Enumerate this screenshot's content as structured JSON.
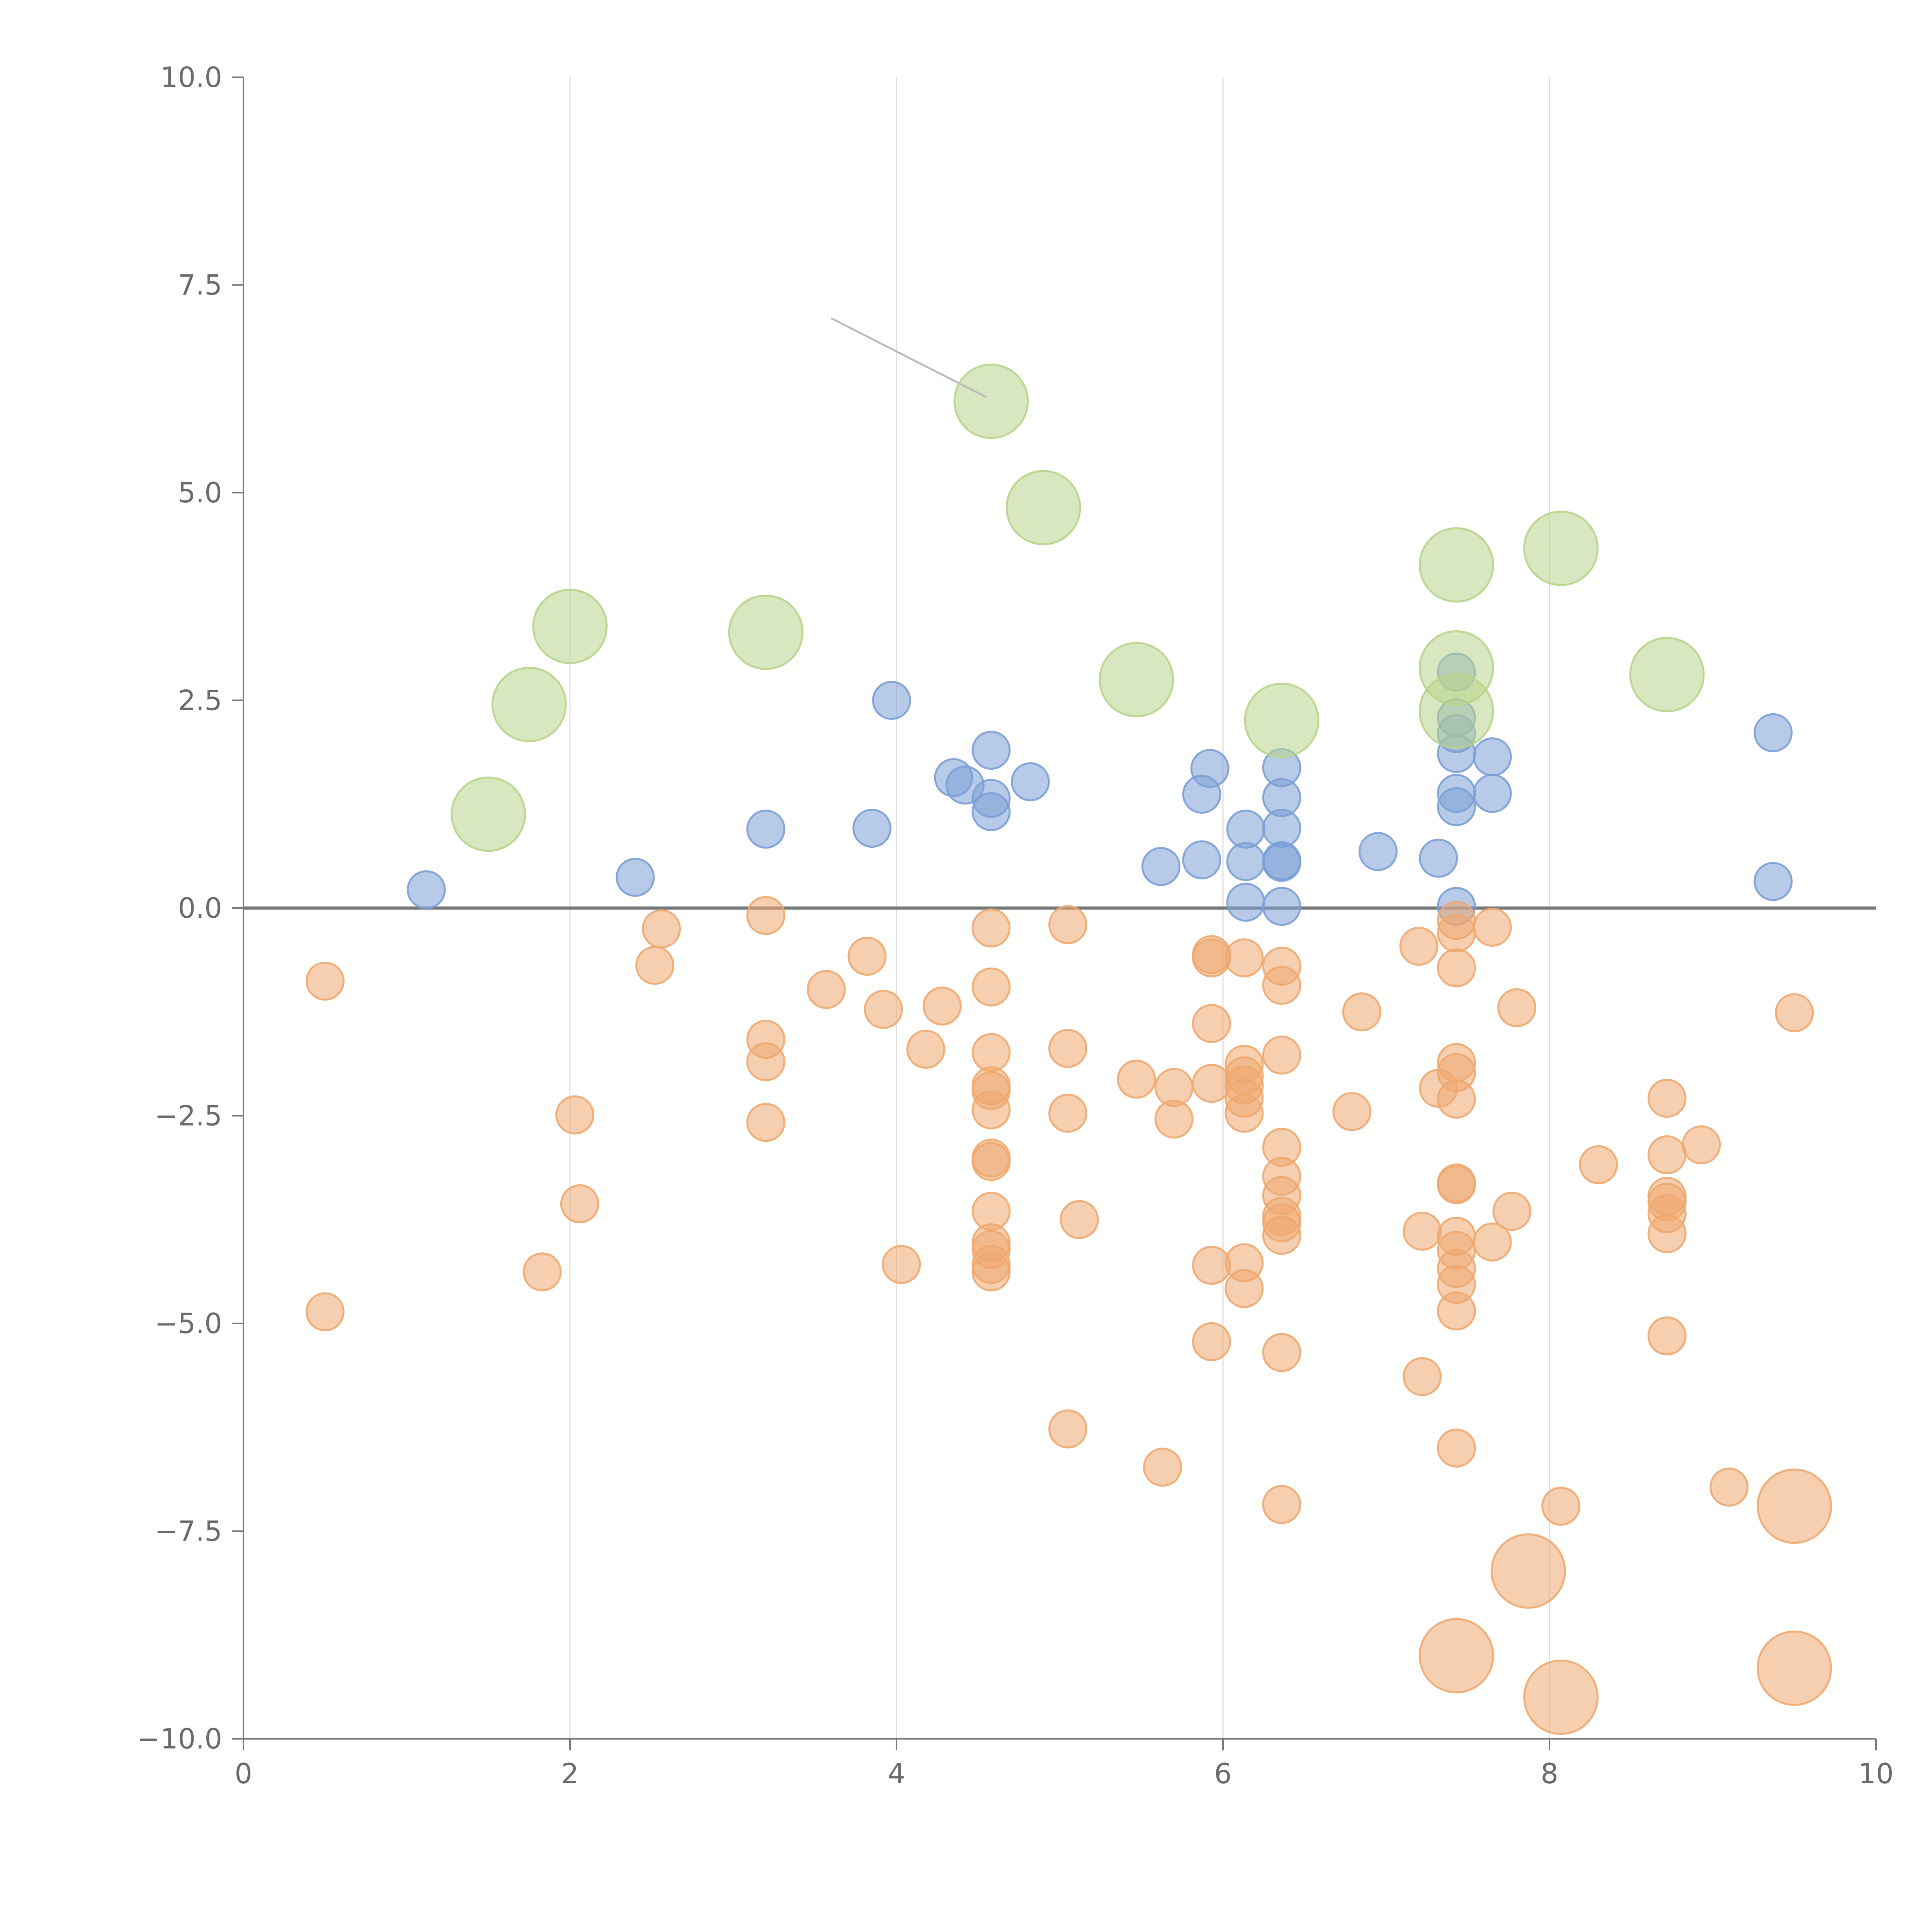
{
  "chart_data": {
    "type": "scatter",
    "title": "",
    "xlabel": "",
    "ylabel": "",
    "xlim": [
      0,
      10
    ],
    "ylim": [
      -10,
      10
    ],
    "x_ticks": [
      0,
      2,
      4,
      6,
      8,
      10
    ],
    "x_tick_labels": [
      "0",
      "2",
      "4",
      "6",
      "8",
      "10"
    ],
    "y_ticks": [
      -10,
      -7.5,
      -5,
      -2.5,
      0,
      2.5,
      5,
      7.5,
      10
    ],
    "y_tick_labels": [
      "−10.0",
      "−7.5",
      "−5.0",
      "−2.5",
      "0.0",
      "2.5",
      "5.0",
      "7.5",
      "10.0"
    ],
    "vertical_gridlines": [
      2,
      4,
      6,
      8
    ],
    "reference_line_y": 0,
    "colors": {
      "positive": "#7b9fd6",
      "negative": "#eea86f",
      "highlight": "#b8d48a",
      "axis": "#7a7a7a",
      "grid": "#dddddd"
    },
    "series": [
      {
        "name": "positive",
        "color_key": "positive",
        "size": "small",
        "points": [
          [
            1.12,
            0.22
          ],
          [
            2.4,
            0.37
          ],
          [
            3.2,
            0.95
          ],
          [
            3.85,
            0.96
          ],
          [
            3.97,
            2.5
          ],
          [
            4.35,
            1.57
          ],
          [
            4.42,
            1.48
          ],
          [
            4.58,
            1.9
          ],
          [
            4.58,
            1.32
          ],
          [
            4.58,
            1.16
          ],
          [
            4.82,
            1.52
          ],
          [
            5.62,
            0.5
          ],
          [
            5.87,
            0.58
          ],
          [
            5.87,
            1.37
          ],
          [
            5.92,
            1.68
          ],
          [
            6.14,
            0.95
          ],
          [
            6.14,
            0.56
          ],
          [
            6.14,
            0.07
          ],
          [
            6.36,
            1.69
          ],
          [
            6.36,
            1.33
          ],
          [
            6.36,
            0.96
          ],
          [
            6.36,
            0.57
          ],
          [
            6.36,
            0.55
          ],
          [
            6.36,
            0.02
          ],
          [
            6.95,
            0.68
          ],
          [
            7.32,
            0.6
          ],
          [
            7.43,
            2.84
          ],
          [
            7.43,
            2.29
          ],
          [
            7.43,
            2.1
          ],
          [
            7.43,
            1.86
          ],
          [
            7.43,
            1.38
          ],
          [
            7.43,
            1.22
          ],
          [
            7.43,
            0.02
          ],
          [
            7.65,
            1.82
          ],
          [
            7.65,
            1.38
          ],
          [
            9.37,
            2.11
          ],
          [
            9.37,
            0.32
          ]
        ]
      },
      {
        "name": "negative",
        "color_key": "negative",
        "size": "small",
        "points": [
          [
            0.5,
            -0.88
          ],
          [
            0.5,
            -4.86
          ],
          [
            1.83,
            -4.38
          ],
          [
            2.03,
            -2.49
          ],
          [
            2.06,
            -3.56
          ],
          [
            2.52,
            -0.69
          ],
          [
            2.56,
            -0.25
          ],
          [
            3.2,
            -0.09
          ],
          [
            3.2,
            -1.58
          ],
          [
            3.2,
            -1.85
          ],
          [
            3.2,
            -2.58
          ],
          [
            3.57,
            -0.98
          ],
          [
            3.82,
            -0.58
          ],
          [
            3.92,
            -1.22
          ],
          [
            4.03,
            -4.29
          ],
          [
            4.18,
            -1.7
          ],
          [
            4.28,
            -1.18
          ],
          [
            4.58,
            -0.24
          ],
          [
            4.58,
            -0.95
          ],
          [
            4.58,
            -1.74
          ],
          [
            4.58,
            -2.14
          ],
          [
            4.58,
            -2.2
          ],
          [
            4.58,
            -2.43
          ],
          [
            4.58,
            -3.01
          ],
          [
            4.58,
            -3.05
          ],
          [
            4.58,
            -3.65
          ],
          [
            4.58,
            -4.03
          ],
          [
            4.58,
            -4.11
          ],
          [
            4.58,
            -4.29
          ],
          [
            4.58,
            -4.38
          ],
          [
            5.05,
            -0.2
          ],
          [
            5.05,
            -1.69
          ],
          [
            5.05,
            -2.47
          ],
          [
            5.05,
            -6.27
          ],
          [
            5.12,
            -3.75
          ],
          [
            5.47,
            -2.06
          ],
          [
            5.63,
            -6.73
          ],
          [
            5.7,
            -2.16
          ],
          [
            5.7,
            -2.54
          ],
          [
            5.93,
            -0.56
          ],
          [
            5.93,
            -0.6
          ],
          [
            5.93,
            -1.39
          ],
          [
            5.93,
            -2.11
          ],
          [
            5.93,
            -4.3
          ],
          [
            5.93,
            -5.22
          ],
          [
            6.13,
            -1.88
          ],
          [
            6.13,
            -2.02
          ],
          [
            6.13,
            -2.13
          ],
          [
            6.13,
            -2.29
          ],
          [
            6.13,
            -2.47
          ],
          [
            6.13,
            -0.6
          ],
          [
            6.13,
            -4.27
          ],
          [
            6.13,
            -4.58
          ],
          [
            6.36,
            -0.7
          ],
          [
            6.36,
            -0.93
          ],
          [
            6.36,
            -1.77
          ],
          [
            6.36,
            -2.88
          ],
          [
            6.36,
            -3.23
          ],
          [
            6.36,
            -3.46
          ],
          [
            6.36,
            -3.71
          ],
          [
            6.36,
            -3.79
          ],
          [
            6.36,
            -3.94
          ],
          [
            6.36,
            -5.35
          ],
          [
            6.36,
            -7.18
          ],
          [
            6.79,
            -2.45
          ],
          [
            6.85,
            -1.25
          ],
          [
            7.2,
            -0.46
          ],
          [
            7.22,
            -3.89
          ],
          [
            7.22,
            -5.64
          ],
          [
            7.32,
            -2.17
          ],
          [
            7.43,
            -0.15
          ],
          [
            7.43,
            -0.3
          ],
          [
            7.43,
            -0.72
          ],
          [
            7.43,
            -1.86
          ],
          [
            7.43,
            -1.98
          ],
          [
            7.43,
            -2.3
          ],
          [
            7.43,
            -3.31
          ],
          [
            7.43,
            -3.33
          ],
          [
            7.43,
            -3.95
          ],
          [
            7.43,
            -4.12
          ],
          [
            7.43,
            -4.34
          ],
          [
            7.43,
            -4.53
          ],
          [
            7.43,
            -4.85
          ],
          [
            7.43,
            -6.5
          ],
          [
            7.65,
            -0.23
          ],
          [
            7.65,
            -4.02
          ],
          [
            7.77,
            -3.65
          ],
          [
            7.8,
            -1.2
          ],
          [
            8.07,
            -7.2
          ],
          [
            8.3,
            -3.09
          ],
          [
            8.72,
            -2.29
          ],
          [
            8.72,
            -2.97
          ],
          [
            8.72,
            -3.47
          ],
          [
            8.72,
            -3.54
          ],
          [
            8.72,
            -3.68
          ],
          [
            8.72,
            -3.92
          ],
          [
            8.72,
            -5.15
          ],
          [
            8.93,
            -2.85
          ],
          [
            9.1,
            -6.97
          ],
          [
            9.5,
            -1.26
          ]
        ]
      },
      {
        "name": "highlight",
        "color_key": "highlight",
        "size": "large",
        "points": [
          [
            1.5,
            1.13
          ],
          [
            1.75,
            2.45
          ],
          [
            2.0,
            3.39
          ],
          [
            3.2,
            3.32
          ],
          [
            4.58,
            6.1
          ],
          [
            4.9,
            4.82
          ],
          [
            5.47,
            2.75
          ],
          [
            6.36,
            2.26
          ],
          [
            7.43,
            4.13
          ],
          [
            7.43,
            2.89
          ],
          [
            7.43,
            2.37
          ],
          [
            8.07,
            4.33
          ],
          [
            8.72,
            2.81
          ]
        ]
      },
      {
        "name": "negative-outliers",
        "color_key": "negative",
        "size": "large",
        "points": [
          [
            7.43,
            -9.0
          ],
          [
            7.87,
            -7.98
          ],
          [
            8.07,
            -9.5
          ],
          [
            9.5,
            -7.2
          ],
          [
            9.5,
            -9.15
          ]
        ]
      }
    ],
    "annotations": [
      {
        "from": [
          3.6,
          7.1
        ],
        "to": [
          4.55,
          6.15
        ],
        "text": ""
      }
    ]
  }
}
